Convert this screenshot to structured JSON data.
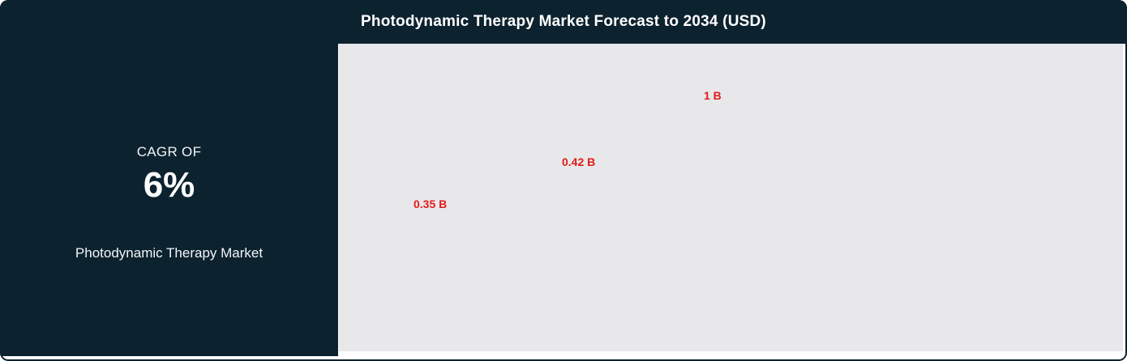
{
  "header": {
    "title": "Photodynamic Therapy Market Forecast to 2034 (USD)"
  },
  "cagr_panel": {
    "label": "CAGR OF",
    "value": "6%",
    "market_name": "Photodynamic Therapy Market"
  },
  "chart_data": {
    "type": "bar",
    "title": "Photodynamic Therapy Market Forecast to 2034 (USD)",
    "unit": "USD",
    "labels": [
      "0.35 B",
      "0.42 B",
      "1 B"
    ],
    "values": [
      0.35,
      0.42,
      1
    ],
    "value_label_color": "#e01b1b",
    "notes": "only ascending data labels visible on blank plot background; no axes, ticks or bars rendered",
    "plot_background": "#e8e8ea"
  },
  "colors": {
    "background_dark": "#0d222f",
    "plot_background": "#e8e8ea",
    "label_red": "#e01b1b",
    "text_light": "#f3f6f8"
  }
}
